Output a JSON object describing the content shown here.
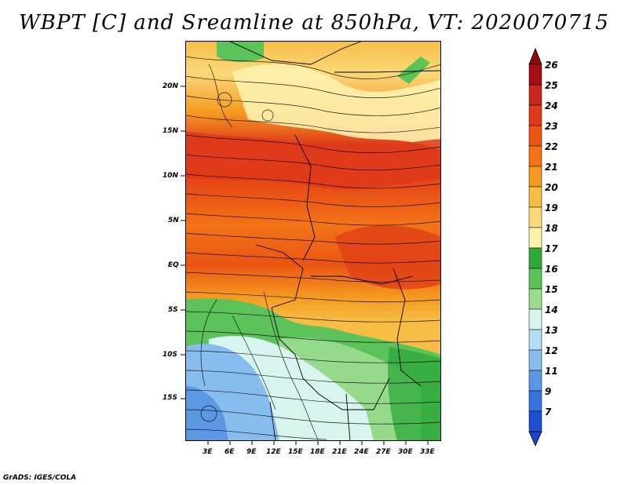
{
  "title": "WBPT [C] and Sreamline at 850hPa, VT: 2020070715",
  "footer": "GrADS: IGES/COLA",
  "map": {
    "lat_labels": [
      "20N",
      "15N",
      "10N",
      "5N",
      "EQ",
      "5S",
      "10S",
      "15S"
    ],
    "lon_labels": [
      "3E",
      "6E",
      "9E",
      "12E",
      "15E",
      "18E",
      "21E",
      "24E",
      "27E",
      "30E",
      "33E"
    ]
  },
  "colorbar": {
    "labels": [
      "26",
      "25",
      "24",
      "23",
      "22",
      "21",
      "20",
      "19",
      "18",
      "17",
      "16",
      "15",
      "14",
      "13",
      "12",
      "11",
      "9",
      "7"
    ],
    "colors": [
      "#a50f15",
      "#c8281c",
      "#de3a1a",
      "#ea5514",
      "#f27416",
      "#f59a20",
      "#f7bd45",
      "#fad97a",
      "#fdf1ae",
      "#2ea83a",
      "#5cc25a",
      "#9bdb90",
      "#d8f4ef",
      "#b5dcf6",
      "#86bdee",
      "#5a98e3",
      "#3672dd",
      "#1f4fd1"
    ],
    "top_arrow_color": "#8b0a0a",
    "bottom_arrow_color": "#1b45c8"
  },
  "legend_colors": {
    "hot": "#d8341c",
    "warm": "#f28b1e",
    "mild": "#fbd36a",
    "cool_green": "#5ec45a",
    "cold_blue": "#7fb4ee"
  }
}
